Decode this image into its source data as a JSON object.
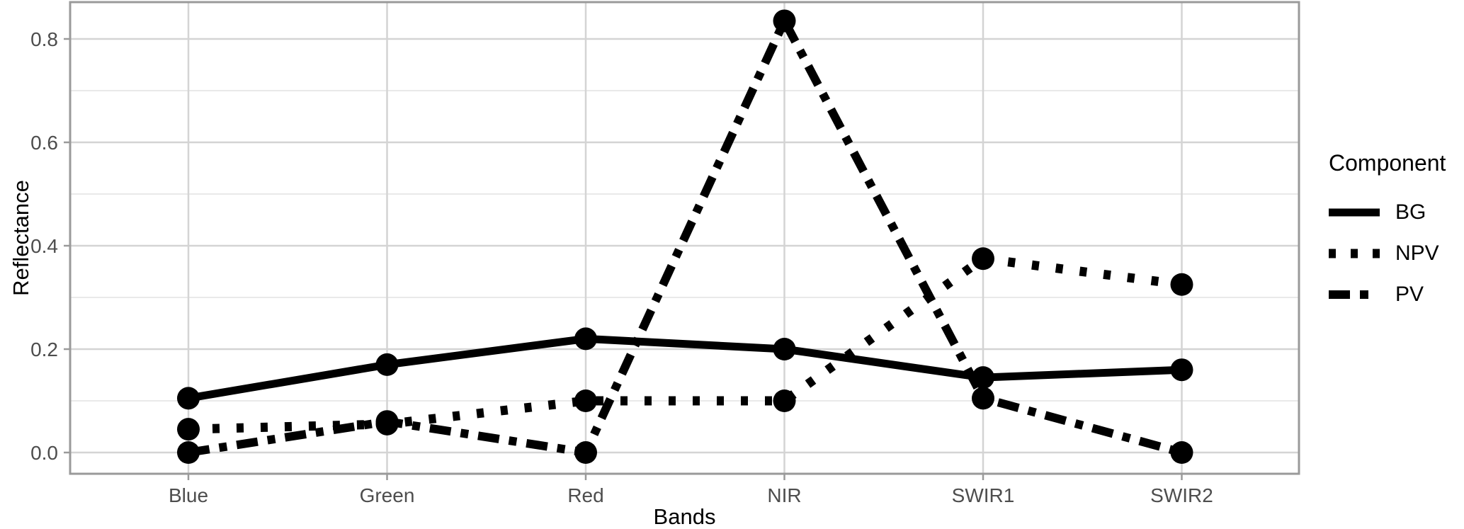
{
  "chart_data": {
    "type": "line",
    "title": "",
    "xlabel": "Bands",
    "ylabel": "Reflectance",
    "categories": [
      "Blue",
      "Green",
      "Red",
      "NIR",
      "SWIR1",
      "SWIR2"
    ],
    "series": [
      {
        "name": "BG",
        "dash": "solid",
        "values": [
          0.105,
          0.17,
          0.22,
          0.2,
          0.145,
          0.16
        ]
      },
      {
        "name": "NPV",
        "dash": "dotted",
        "values": [
          0.045,
          0.055,
          0.1,
          0.1,
          0.375,
          0.325
        ]
      },
      {
        "name": "PV",
        "dash": "longdash",
        "values": [
          0.0,
          0.06,
          0.0,
          0.835,
          0.105,
          0.0
        ]
      }
    ],
    "ylim": [
      0,
      0.8
    ],
    "y_major_ticks": [
      0.0,
      0.2,
      0.4,
      0.6,
      0.8
    ],
    "y_tick_labels": [
      "0.0",
      "0.2",
      "0.4",
      "0.6",
      "0.8"
    ],
    "y_minor_ticks": [
      0.1,
      0.3,
      0.5,
      0.7
    ],
    "grid": true,
    "marker": "filled-circle",
    "legend_position": "right",
    "colors": {
      "series": "#000000",
      "grid_major": "#d4d4d4",
      "grid_minor": "#e9e9e9",
      "panel_border": "#9a9a9a",
      "tick": "#9a9a9a",
      "tick_label": "#4d4d4d",
      "axis_title": "#000000",
      "background": "#ffffff"
    }
  },
  "legend": {
    "title": "Component",
    "items": [
      {
        "label": "BG",
        "dash": "solid"
      },
      {
        "label": "NPV",
        "dash": "dotted"
      },
      {
        "label": "PV",
        "dash": "longdash"
      }
    ]
  }
}
